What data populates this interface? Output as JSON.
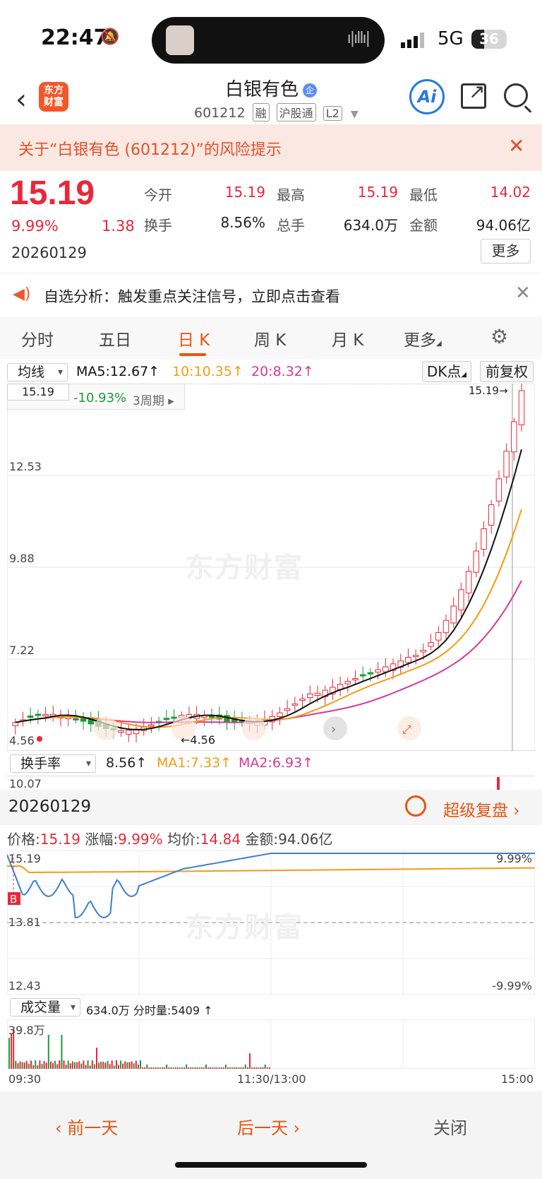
{
  "status": {
    "time": "22:47",
    "network": "5G",
    "battery": "36",
    "battery_level": 0.36
  },
  "header": {
    "logo_line1": "东方",
    "logo_line2": "财富",
    "title": "白银有色",
    "title_badge": "企",
    "code": "601212",
    "tags": [
      "融",
      "沪股通",
      "L2"
    ],
    "ai_label": "Ai"
  },
  "risk_banner": {
    "text": "关于“白银有色 (601212)”的风险提示"
  },
  "quote": {
    "price": "15.19",
    "pct": "9.99%",
    "change": "1.38",
    "date": "20260129",
    "fields": [
      {
        "label": "今开",
        "value": "15.19",
        "color": "#e8283b"
      },
      {
        "label": "最高",
        "value": "15.19",
        "color": "#e8283b"
      },
      {
        "label": "最低",
        "value": "14.02",
        "color": "#e8283b"
      },
      {
        "label": "换手",
        "value": "8.56%",
        "color": "#222222"
      },
      {
        "label": "总手",
        "value": "634.0万",
        "color": "#222222"
      },
      {
        "label": "金额",
        "value": "94.06亿",
        "color": "#222222"
      }
    ],
    "more_label": "更多"
  },
  "alert": {
    "text": "自选分析：触发重点关注信号，立即点击查看"
  },
  "tabs": [
    "分时",
    "五日",
    "日 K",
    "周 K",
    "月 K",
    "更多"
  ],
  "active_tab": 2,
  "ma_row": {
    "selector": "均线",
    "ma5": "MA5:12.67",
    "ma10": "10:10.35",
    "ma20": "20:8.32",
    "dk_label": "DK点",
    "fq_label": "前复权"
  },
  "kline": {
    "top_value_box": "15.19",
    "range_pct": "-10.93%",
    "period_label": "3周期",
    "max_label": "15.19",
    "y_labels": [
      "12.53",
      "9.88",
      "7.22",
      "4.56"
    ],
    "min_label": "4.56",
    "watermark": "东方财富",
    "colors": {
      "up": "#e8283b",
      "down": "#1a9c3a",
      "ma5": "#111111",
      "ma10": "#f39c12",
      "ma20": "#d6389b"
    }
  },
  "turnover": {
    "selector": "换手率",
    "value": "8.56",
    "ma1": "MA1:7.33",
    "ma2": "MA2:6.93",
    "top_label": "10.07"
  },
  "detail": {
    "date": "20260129",
    "replay_label": "超级复盘",
    "price_label": "价格:",
    "price": "15.19",
    "pct_label": "涨幅:",
    "pct": "9.99%",
    "avg_label": "均价:",
    "avg": "14.84",
    "amount_label": "金额:",
    "amount": "94.06亿",
    "y_top": "15.19",
    "y_mid": "13.81",
    "y_bot": "12.43",
    "pct_top": "9.99%",
    "pct_bot": "-9.99%",
    "buy_marker": "B",
    "vol_selector": "成交量",
    "vol_total": "634.0万",
    "vol_minute_label": "分时量:",
    "vol_minute": "5409",
    "vol_top": "39.8万",
    "times": [
      "09:30",
      "11:30/13:00",
      "15:00"
    ]
  },
  "bottom": {
    "prev": "前一天",
    "next": "后一天",
    "close": "关闭"
  },
  "chart_data": {
    "type": "candlestick",
    "title": "",
    "ylim": [
      4.56,
      15.19
    ],
    "y_ticks": [
      12.53,
      9.88,
      7.22,
      4.56
    ],
    "series": [
      {
        "name": "MA5",
        "value": 12.67
      },
      {
        "name": "MA10",
        "value": 10.35
      },
      {
        "name": "MA20",
        "value": 8.32
      }
    ]
  }
}
